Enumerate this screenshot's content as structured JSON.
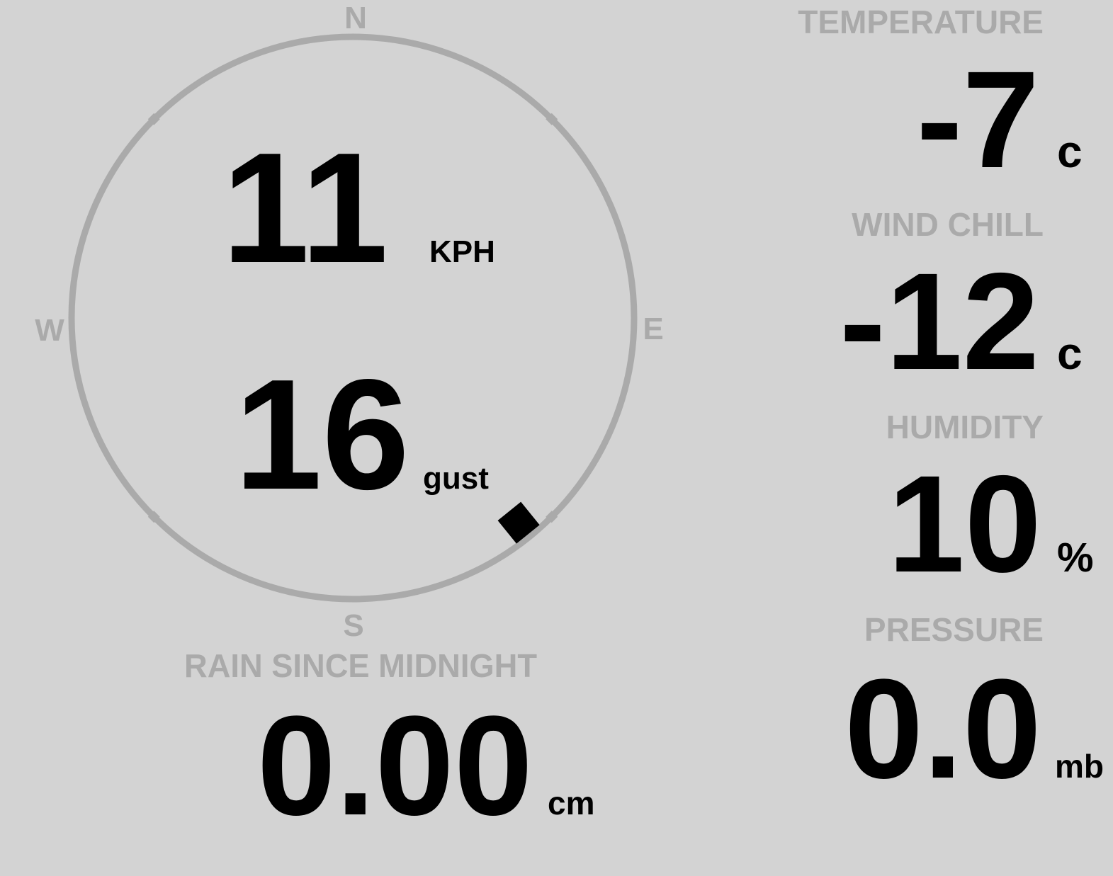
{
  "colors": {
    "background": "#d3d3d3",
    "label": "#aaaaaa",
    "value": "#000000",
    "ring": "#aaaaaa"
  },
  "wind": {
    "speed": "11",
    "speed_unit": "KPH",
    "gust": "16",
    "gust_unit": "gust",
    "direction_degrees": 141,
    "compass": {
      "n": "N",
      "e": "E",
      "s": "S",
      "w": "W"
    }
  },
  "rain": {
    "label": "RAIN SINCE MIDNIGHT",
    "value": "0.00",
    "unit": "cm"
  },
  "temperature": {
    "label": "TEMPERATURE",
    "value": "-7",
    "unit": "c"
  },
  "wind_chill": {
    "label": "WIND CHILL",
    "value": "-12",
    "unit": "c"
  },
  "humidity": {
    "label": "HUMIDITY",
    "value": "10",
    "unit": "%"
  },
  "pressure": {
    "label": "PRESSURE",
    "value": "0.0",
    "unit": "mb"
  }
}
